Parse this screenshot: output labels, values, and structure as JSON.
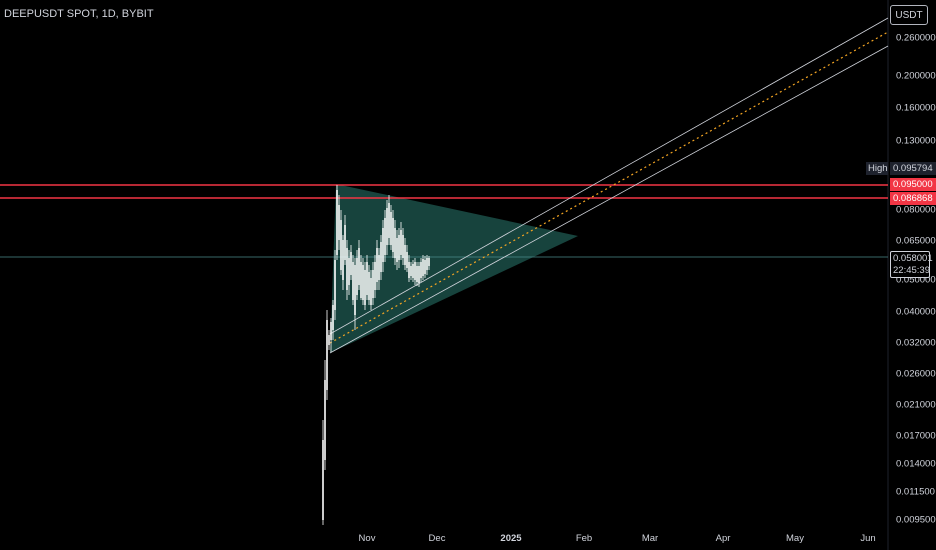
{
  "header": {
    "title": "DEEPUSDT SPOT, 1D, BYBIT"
  },
  "currency_button": {
    "label": "USDT"
  },
  "price_axis": {
    "ticks": [
      "0.260000",
      "0.200000",
      "0.160000",
      "0.130000",
      "0.080000",
      "0.065000",
      "0.050000",
      "0.040000",
      "0.032000",
      "0.026000",
      "0.021000",
      "0.017000",
      "0.014000",
      "0.011500",
      "0.009500"
    ]
  },
  "time_axis": {
    "ticks": [
      "Nov",
      "Dec",
      "2025",
      "Feb",
      "Mar",
      "Apr",
      "May",
      "Jun"
    ]
  },
  "badges": {
    "high_label": "High",
    "high_value": "0.095794",
    "level_upper": "0.095000",
    "level_lower": "0.086868",
    "last_price": "0.058001",
    "countdown": "22:45:39"
  },
  "colors": {
    "background": "#000000",
    "up_candle": "#26a69a",
    "wick": "#ffffff",
    "resistance": "#f23645",
    "triangle_fill": "#1f5a52",
    "channel": "#d1d4dc",
    "median": "#f5a623"
  }
}
